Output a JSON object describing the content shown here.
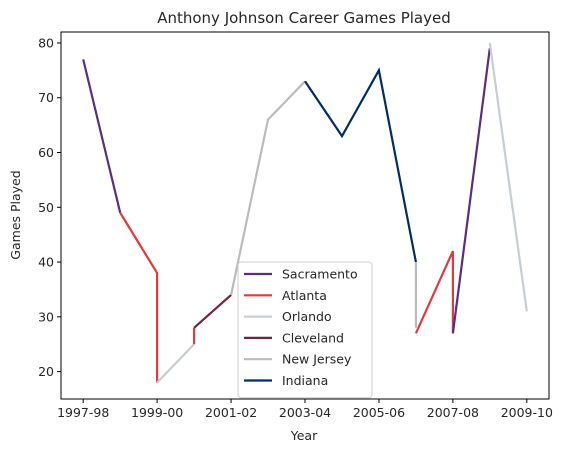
{
  "chart_data": {
    "type": "line",
    "title": "Anthony Johnson  Career Games Played",
    "xlabel": "Year",
    "ylabel": "Games Played",
    "x_tick_labels": [
      "1997-98",
      "1999-00",
      "2001-02",
      "2003-04",
      "2005-06",
      "2007-08",
      "2009-10"
    ],
    "y_ticks": [
      20,
      30,
      40,
      50,
      60,
      70,
      80
    ],
    "ylim": [
      15,
      82
    ],
    "xlim": [
      "1997-98",
      "2009-10"
    ],
    "grid": false,
    "legend_position": "lower center",
    "series": [
      {
        "name": "Sacramento",
        "color": "#5a2d81",
        "points": [
          [
            "1997-98",
            77
          ],
          [
            "1998-99",
            49
          ]
        ]
      },
      {
        "name": "Atlanta",
        "color": "#e03a3e",
        "points": [
          [
            "1998-99",
            49
          ],
          [
            "1999-00",
            38
          ],
          [
            "1999-00",
            18
          ]
        ]
      },
      {
        "name": "Orlando",
        "color": "#c4ced4",
        "points": [
          [
            "1999-00",
            18
          ],
          [
            "2000-01",
            25
          ]
        ]
      },
      {
        "name": "Atlanta",
        "color": "#e03a3e",
        "legend": false,
        "points": [
          [
            "2000-01",
            25
          ],
          [
            "2000-01",
            28
          ]
        ]
      },
      {
        "name": "Cleveland",
        "color": "#6f263d",
        "points": [
          [
            "2000-01",
            28
          ],
          [
            "2001-02",
            34
          ]
        ]
      },
      {
        "name": "New Jersey",
        "color": "#bbbbbb",
        "points": [
          [
            "2001-02",
            34
          ],
          [
            "2002-03",
            66
          ],
          [
            "2003-04",
            73
          ]
        ]
      },
      {
        "name": "Indiana",
        "color": "#002d62",
        "points": [
          [
            "2003-04",
            73
          ],
          [
            "2004-05",
            63
          ],
          [
            "2005-06",
            75
          ],
          [
            "2006-07",
            40
          ]
        ]
      },
      {
        "name": "New Jersey",
        "color": "#bbbbbb",
        "legend": false,
        "points": [
          [
            "2006-07",
            40
          ],
          [
            "2006-07",
            28
          ]
        ]
      },
      {
        "name": "Atlanta",
        "color": "#e03a3e",
        "legend": false,
        "points": [
          [
            "2006-07",
            27
          ],
          [
            "2007-08",
            42
          ],
          [
            "2007-08",
            27
          ]
        ]
      },
      {
        "name": "Sacramento",
        "color": "#5a2d81",
        "legend": false,
        "points": [
          [
            "2007-08",
            27
          ],
          [
            "2008-09",
            79
          ]
        ]
      },
      {
        "name": "Orlando",
        "color": "#c4ced4",
        "legend": false,
        "points": [
          [
            "2008-09",
            80
          ],
          [
            "2009-10",
            31
          ]
        ]
      }
    ],
    "legend": [
      {
        "name": "Sacramento",
        "color": "#5a2d81"
      },
      {
        "name": "Atlanta",
        "color": "#e03a3e"
      },
      {
        "name": "Orlando",
        "color": "#c4ced4"
      },
      {
        "name": "Cleveland",
        "color": "#6f263d"
      },
      {
        "name": "New Jersey",
        "color": "#bbbbbb"
      },
      {
        "name": "Indiana",
        "color": "#002d62"
      }
    ]
  }
}
